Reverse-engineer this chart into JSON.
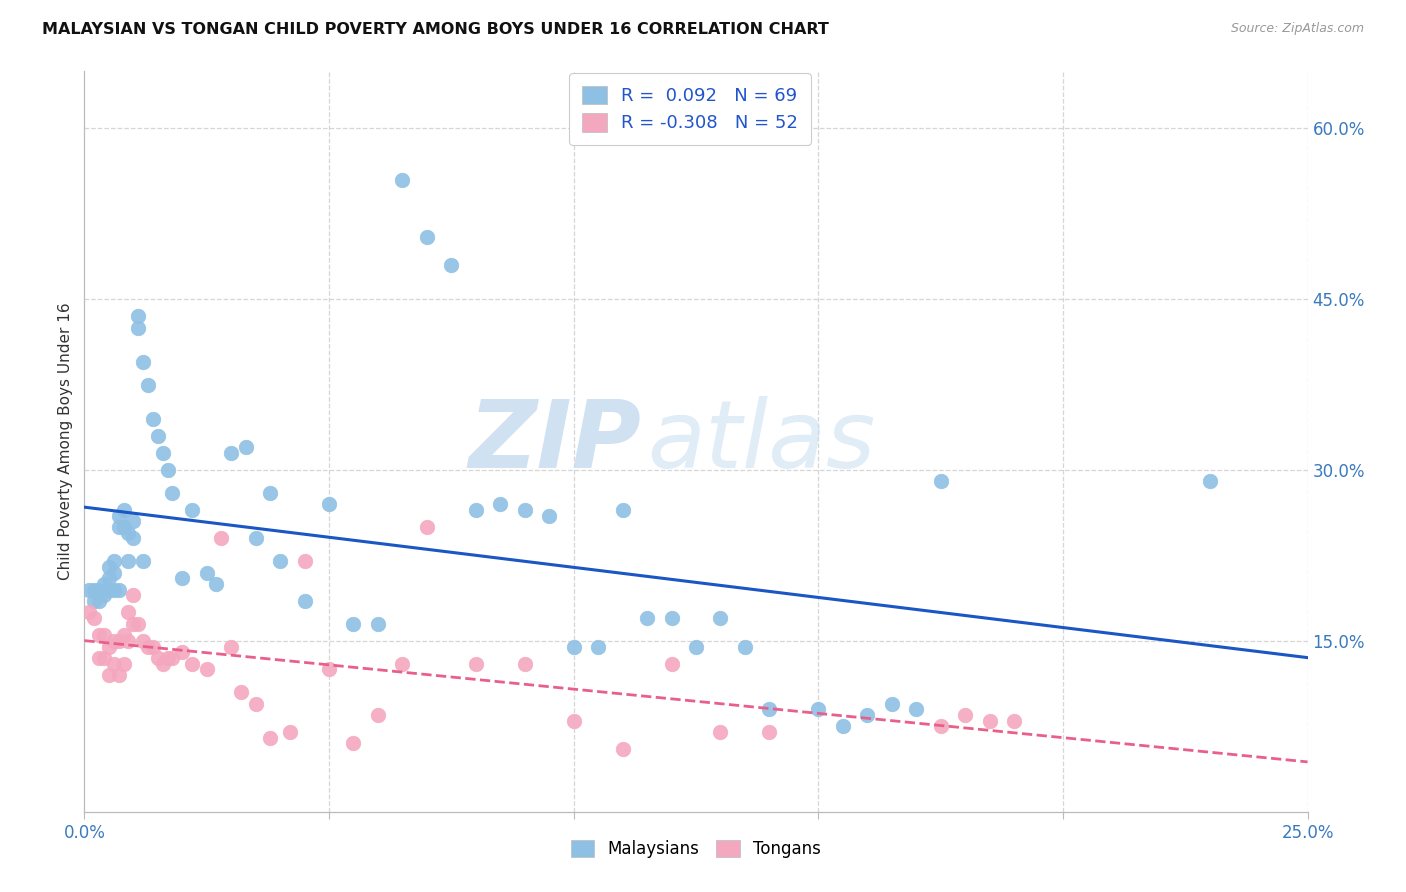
{
  "title": "MALAYSIAN VS TONGAN CHILD POVERTY AMONG BOYS UNDER 16 CORRELATION CHART",
  "source": "Source: ZipAtlas.com",
  "ylabel": "Child Poverty Among Boys Under 16",
  "xlim": [
    0.0,
    0.25
  ],
  "ylim": [
    0.0,
    0.65
  ],
  "xticks": [
    0.0,
    0.05,
    0.1,
    0.15,
    0.2,
    0.25
  ],
  "yticks_right": [
    0.6,
    0.45,
    0.3,
    0.15
  ],
  "ytick_labels_right": [
    "60.0%",
    "45.0%",
    "30.0%",
    "15.0%"
  ],
  "malaysian_color": "#8ec0e4",
  "tongan_color": "#f4a8c0",
  "malaysian_line_color": "#1a56c4",
  "tongan_line_color": "#e8608a",
  "background_color": "#ffffff",
  "grid_color": "#cccccc",
  "watermark_zip": "ZIP",
  "watermark_atlas": "atlas",
  "malaysian_x": [
    0.001,
    0.002,
    0.002,
    0.003,
    0.003,
    0.004,
    0.004,
    0.005,
    0.005,
    0.005,
    0.006,
    0.006,
    0.006,
    0.007,
    0.007,
    0.007,
    0.008,
    0.008,
    0.009,
    0.009,
    0.01,
    0.01,
    0.011,
    0.011,
    0.012,
    0.012,
    0.013,
    0.014,
    0.015,
    0.016,
    0.017,
    0.018,
    0.02,
    0.022,
    0.025,
    0.027,
    0.03,
    0.033,
    0.035,
    0.038,
    0.04,
    0.045,
    0.05,
    0.055,
    0.06,
    0.065,
    0.07,
    0.075,
    0.08,
    0.085,
    0.09,
    0.095,
    0.1,
    0.105,
    0.11,
    0.115,
    0.12,
    0.125,
    0.13,
    0.135,
    0.14,
    0.15,
    0.155,
    0.16,
    0.165,
    0.17,
    0.175,
    0.23
  ],
  "malaysian_y": [
    0.195,
    0.195,
    0.185,
    0.195,
    0.185,
    0.2,
    0.19,
    0.215,
    0.205,
    0.195,
    0.22,
    0.21,
    0.195,
    0.26,
    0.25,
    0.195,
    0.265,
    0.25,
    0.245,
    0.22,
    0.255,
    0.24,
    0.435,
    0.425,
    0.395,
    0.22,
    0.375,
    0.345,
    0.33,
    0.315,
    0.3,
    0.28,
    0.205,
    0.265,
    0.21,
    0.2,
    0.315,
    0.32,
    0.24,
    0.28,
    0.22,
    0.185,
    0.27,
    0.165,
    0.165,
    0.555,
    0.505,
    0.48,
    0.265,
    0.27,
    0.265,
    0.26,
    0.145,
    0.145,
    0.265,
    0.17,
    0.17,
    0.145,
    0.17,
    0.145,
    0.09,
    0.09,
    0.075,
    0.085,
    0.095,
    0.09,
    0.29,
    0.29
  ],
  "tongan_x": [
    0.001,
    0.002,
    0.003,
    0.003,
    0.004,
    0.004,
    0.005,
    0.005,
    0.006,
    0.006,
    0.007,
    0.007,
    0.008,
    0.008,
    0.009,
    0.009,
    0.01,
    0.01,
    0.011,
    0.012,
    0.013,
    0.014,
    0.015,
    0.016,
    0.017,
    0.018,
    0.02,
    0.022,
    0.025,
    0.028,
    0.03,
    0.032,
    0.035,
    0.038,
    0.042,
    0.045,
    0.05,
    0.055,
    0.06,
    0.065,
    0.07,
    0.08,
    0.09,
    0.1,
    0.11,
    0.12,
    0.13,
    0.14,
    0.175,
    0.18,
    0.185,
    0.19
  ],
  "tongan_y": [
    0.175,
    0.17,
    0.155,
    0.135,
    0.155,
    0.135,
    0.145,
    0.12,
    0.15,
    0.13,
    0.15,
    0.12,
    0.155,
    0.13,
    0.175,
    0.15,
    0.19,
    0.165,
    0.165,
    0.15,
    0.145,
    0.145,
    0.135,
    0.13,
    0.135,
    0.135,
    0.14,
    0.13,
    0.125,
    0.24,
    0.145,
    0.105,
    0.095,
    0.065,
    0.07,
    0.22,
    0.125,
    0.06,
    0.085,
    0.13,
    0.25,
    0.13,
    0.13,
    0.08,
    0.055,
    0.13,
    0.07,
    0.07,
    0.075,
    0.085,
    0.08,
    0.08
  ]
}
